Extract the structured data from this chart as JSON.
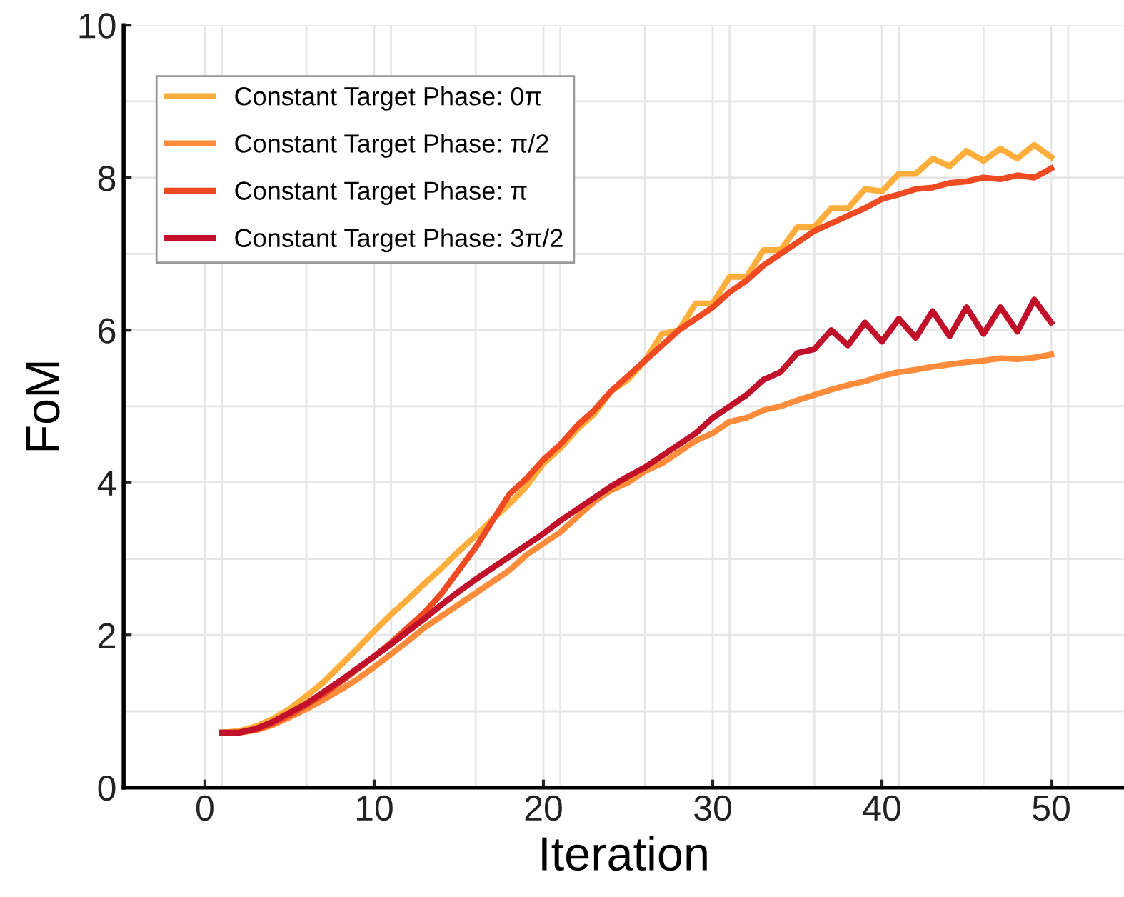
{
  "chart_data": {
    "type": "line",
    "xlabel": "Iteration",
    "ylabel": "FoM",
    "x": [
      1,
      2,
      3,
      4,
      5,
      6,
      7,
      8,
      9,
      10,
      11,
      12,
      13,
      14,
      15,
      16,
      17,
      18,
      19,
      20,
      21,
      22,
      23,
      24,
      25,
      26,
      27,
      28,
      29,
      30,
      31,
      32,
      33,
      34,
      35,
      36,
      37,
      38,
      39,
      40,
      41,
      42,
      43,
      44,
      45,
      46,
      47,
      48,
      49,
      50
    ],
    "series": [
      {
        "name": "Constant Target Phase: 0π",
        "color": "#ffad3b",
        "values": [
          0.72,
          0.74,
          0.8,
          0.9,
          1.03,
          1.2,
          1.38,
          1.6,
          1.82,
          2.05,
          2.27,
          2.47,
          2.68,
          2.88,
          3.1,
          3.3,
          3.52,
          3.72,
          3.95,
          4.25,
          4.45,
          4.7,
          4.9,
          5.2,
          5.35,
          5.6,
          5.95,
          6.0,
          6.35,
          6.35,
          6.7,
          6.7,
          7.05,
          7.05,
          7.35,
          7.35,
          7.6,
          7.6,
          7.85,
          7.82,
          8.05,
          8.05,
          8.25,
          8.15,
          8.35,
          8.22,
          8.38,
          8.25,
          8.43,
          8.27
        ]
      },
      {
        "name": "Constant Target Phase: π/2",
        "color": "#ff8c3a",
        "values": [
          0.72,
          0.72,
          0.75,
          0.82,
          0.92,
          1.03,
          1.15,
          1.28,
          1.42,
          1.58,
          1.75,
          1.92,
          2.1,
          2.25,
          2.4,
          2.55,
          2.7,
          2.85,
          3.05,
          3.2,
          3.35,
          3.55,
          3.75,
          3.9,
          4.0,
          4.15,
          4.25,
          4.4,
          4.55,
          4.65,
          4.8,
          4.85,
          4.95,
          5.0,
          5.08,
          5.15,
          5.22,
          5.28,
          5.33,
          5.4,
          5.45,
          5.48,
          5.52,
          5.55,
          5.58,
          5.6,
          5.63,
          5.62,
          5.64,
          5.68
        ]
      },
      {
        "name": "Constant Target Phase: π",
        "color": "#f04a23",
        "values": [
          0.72,
          0.72,
          0.76,
          0.84,
          0.95,
          1.08,
          1.22,
          1.38,
          1.55,
          1.72,
          1.9,
          2.1,
          2.3,
          2.55,
          2.85,
          3.15,
          3.5,
          3.85,
          4.05,
          4.3,
          4.5,
          4.75,
          4.95,
          5.2,
          5.4,
          5.6,
          5.8,
          6.0,
          6.15,
          6.3,
          6.5,
          6.65,
          6.85,
          7.0,
          7.15,
          7.3,
          7.4,
          7.5,
          7.6,
          7.72,
          7.78,
          7.85,
          7.87,
          7.93,
          7.95,
          8.0,
          7.98,
          8.03,
          8.0,
          8.12
        ]
      },
      {
        "name": "Constant Target Phase: 3π/2",
        "color": "#c0102a",
        "values": [
          0.72,
          0.72,
          0.77,
          0.86,
          0.98,
          1.1,
          1.25,
          1.4,
          1.56,
          1.72,
          1.88,
          2.05,
          2.22,
          2.4,
          2.57,
          2.73,
          2.88,
          3.03,
          3.18,
          3.33,
          3.5,
          3.65,
          3.8,
          3.95,
          4.08,
          4.2,
          4.35,
          4.5,
          4.65,
          4.85,
          5.0,
          5.15,
          5.35,
          5.45,
          5.7,
          5.75,
          6.0,
          5.8,
          6.1,
          5.85,
          6.15,
          5.9,
          6.25,
          5.92,
          6.3,
          5.95,
          6.3,
          5.98,
          6.4,
          6.1
        ]
      }
    ],
    "xlim": [
      -4.8,
      54.3
    ],
    "ylim": [
      0,
      10
    ],
    "xticks": [
      0,
      10,
      20,
      30,
      40,
      50,
      {
        "value": 1,
        "label": null
      },
      {
        "value": 6,
        "label": null
      },
      {
        "value": 11,
        "label": null
      },
      {
        "value": 16,
        "label": null
      },
      {
        "value": 21,
        "label": null
      },
      {
        "value": 26,
        "label": null
      },
      {
        "value": 31,
        "label": null
      },
      {
        "value": 36,
        "label": null
      },
      {
        "value": 41,
        "label": null
      },
      {
        "value": 46,
        "label": null
      },
      {
        "value": 51,
        "label": null
      }
    ],
    "yticks": [
      0,
      {
        "value": 1,
        "label": null
      },
      2,
      {
        "value": 3,
        "label": null
      },
      4,
      {
        "value": 5,
        "label": null
      },
      6,
      {
        "value": 7,
        "label": null
      },
      8,
      {
        "value": 9,
        "label": null
      },
      10
    ],
    "grid": true,
    "legend": "top left",
    "marker": "none",
    "line_style": "solid"
  }
}
